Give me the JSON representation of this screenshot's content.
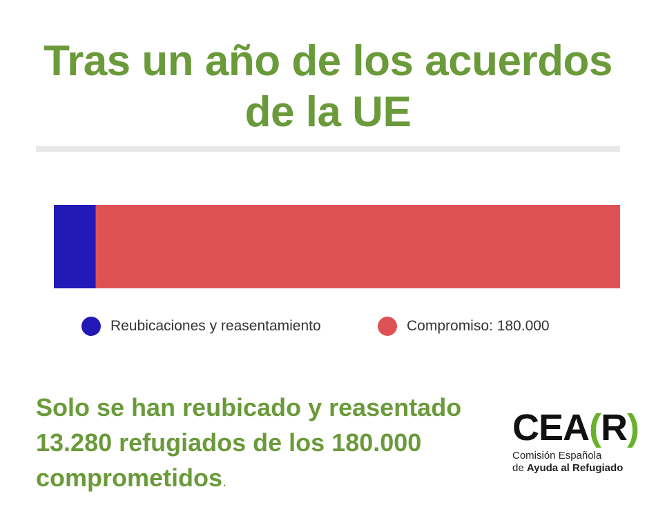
{
  "title_line1": "Tras un año de los acuerdos",
  "title_line2": "de la UE",
  "chart_data": {
    "type": "bar",
    "orientation": "horizontal-stacked",
    "series": [
      {
        "name": "Reubicaciones y reasentamiento",
        "values": [
          13280
        ],
        "color": "#2219b6"
      },
      {
        "name": "Compromiso: 180.000",
        "values": [
          166720
        ],
        "color": "#de5256"
      }
    ],
    "total": 180000,
    "legend_position": "bottom",
    "grid": false
  },
  "summary": {
    "line1": "Solo se han reubicado y reasentado",
    "line2": "13.280 refugiados de los 180.000",
    "line3": "comprometidos",
    "end": "."
  },
  "logo": {
    "mark_prefix": "CEA",
    "bracket_open": "(",
    "mark_letter": "R",
    "bracket_close": ")",
    "sub_line1": "Comisión Española",
    "sub_line2_prefix": "de ",
    "sub_line2_bold": "Ayuda al Refugiado",
    "accent_color": "#6ab02a"
  },
  "colors": {
    "title_green": "#6a9a3a",
    "divider": "#e8e8e8"
  }
}
